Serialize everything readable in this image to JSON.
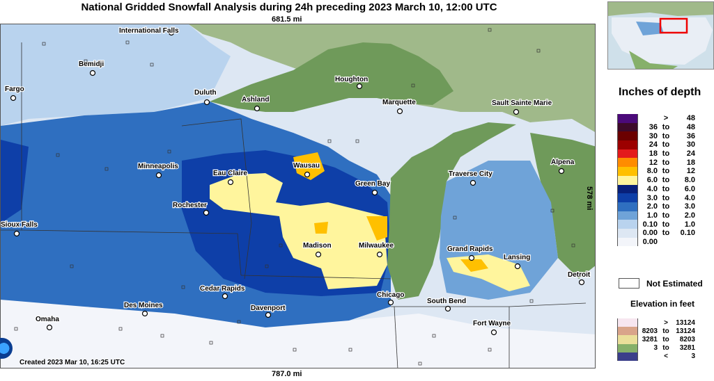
{
  "title": "National Gridded Snowfall Analysis during 24h preceding 2023 March 10, 12:00 UTC",
  "scale": {
    "top": "681.5 mi",
    "bottom": "787.0 mi",
    "right": "578 mi"
  },
  "created": "Created 2023 Mar 10, 16:25 UTC",
  "colors": {
    "lake": "#6f9a5a",
    "land_canada": "#a0b98a",
    "none": "#eef2f8"
  },
  "cities": [
    {
      "name": "International Falls",
      "icon": "city-marker"
    },
    {
      "name": "Bemidji",
      "icon": "city-marker"
    },
    {
      "name": "Fargo",
      "icon": "city-marker"
    },
    {
      "name": "Duluth",
      "icon": "city-marker"
    },
    {
      "name": "Ashland",
      "icon": "city-marker"
    },
    {
      "name": "Houghton",
      "icon": "city-marker"
    },
    {
      "name": "Marquette",
      "icon": "city-marker"
    },
    {
      "name": "Sault Sainte Marie",
      "icon": "city-marker"
    },
    {
      "name": "Minneapolis",
      "icon": "city-marker"
    },
    {
      "name": "Eau Claire",
      "icon": "city-marker"
    },
    {
      "name": "Wausau",
      "icon": "city-marker"
    },
    {
      "name": "Green Bay",
      "icon": "city-marker"
    },
    {
      "name": "Traverse City",
      "icon": "city-marker"
    },
    {
      "name": "Alpena",
      "icon": "city-marker"
    },
    {
      "name": "Rochester",
      "icon": "city-marker"
    },
    {
      "name": "Sioux Falls",
      "icon": "city-marker"
    },
    {
      "name": "Madison",
      "icon": "city-marker"
    },
    {
      "name": "Milwaukee",
      "icon": "city-marker"
    },
    {
      "name": "Grand Rapids",
      "icon": "city-marker"
    },
    {
      "name": "Lansing",
      "icon": "city-marker"
    },
    {
      "name": "Detroit",
      "icon": "city-marker"
    },
    {
      "name": "Cedar Rapids",
      "icon": "city-marker"
    },
    {
      "name": "Des Moines",
      "icon": "city-marker"
    },
    {
      "name": "Davenport",
      "icon": "city-marker"
    },
    {
      "name": "Chicago",
      "icon": "city-marker"
    },
    {
      "name": "South Bend",
      "icon": "city-marker"
    },
    {
      "name": "Fort Wayne",
      "icon": "city-marker"
    },
    {
      "name": "Omaha",
      "icon": "city-marker"
    }
  ],
  "legend": {
    "title": "Inches of depth",
    "rows": [
      {
        "a": "",
        "op": ">",
        "b": "48",
        "color": "#4b0a7a"
      },
      {
        "a": "36",
        "op": "to",
        "b": "48",
        "color": "#3d0a2a"
      },
      {
        "a": "30",
        "op": "to",
        "b": "36",
        "color": "#6b0000"
      },
      {
        "a": "24",
        "op": "to",
        "b": "30",
        "color": "#9c0000"
      },
      {
        "a": "18",
        "op": "to",
        "b": "24",
        "color": "#e31a1c"
      },
      {
        "a": "12",
        "op": "to",
        "b": "18",
        "color": "#ff8c00"
      },
      {
        "a": "8.0",
        "op": "to",
        "b": "12",
        "color": "#ffc000"
      },
      {
        "a": "6.0",
        "op": "to",
        "b": "8.0",
        "color": "#fff59d"
      },
      {
        "a": "4.0",
        "op": "to",
        "b": "6.0",
        "color": "#08207a"
      },
      {
        "a": "3.0",
        "op": "to",
        "b": "4.0",
        "color": "#0e3fa8"
      },
      {
        "a": "2.0",
        "op": "to",
        "b": "3.0",
        "color": "#2f6fc0"
      },
      {
        "a": "1.0",
        "op": "to",
        "b": "2.0",
        "color": "#6fa3d8"
      },
      {
        "a": "0.10",
        "op": "to",
        "b": "1.0",
        "color": "#b9d3ee"
      },
      {
        "a": "0.00",
        "op": "to",
        "b": "0.10",
        "color": "#dde7f3"
      },
      {
        "a": "0.00",
        "op": "",
        "b": "",
        "color": "#f3f5fa"
      }
    ],
    "not_estimated": "Not Estimated"
  },
  "elevation": {
    "title": "Elevation in feet",
    "rows": [
      {
        "a": "",
        "op": ">",
        "b": "13124",
        "color": "#f7e6f0"
      },
      {
        "a": "8203",
        "op": "to",
        "b": "13124",
        "color": "#d9a48a"
      },
      {
        "a": "3281",
        "op": "to",
        "b": "8203",
        "color": "#eadf9a"
      },
      {
        "a": "3",
        "op": "to",
        "b": "3281",
        "color": "#86b06a"
      },
      {
        "a": "",
        "op": "<",
        "b": "3",
        "color": "#3b3f8a"
      }
    ]
  }
}
